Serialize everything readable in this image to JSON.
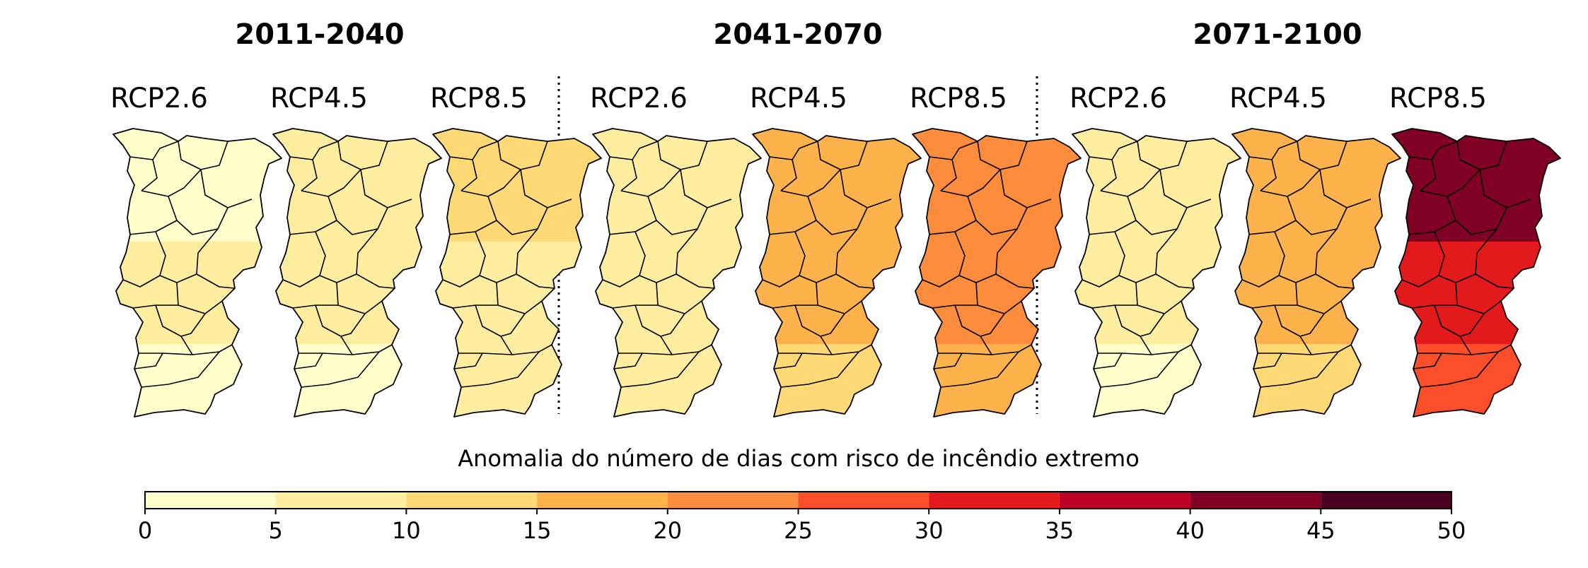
{
  "figure": {
    "periods": [
      {
        "label": "2011-2040",
        "scenarios": [
          {
            "label": "RCP2.6",
            "north": 4,
            "centre": 5,
            "south": 3
          },
          {
            "label": "RCP4.5",
            "north": 6,
            "centre": 6,
            "south": 3
          },
          {
            "label": "RCP8.5",
            "north": 11,
            "centre": 9,
            "south": 8
          }
        ]
      },
      {
        "label": "2041-2070",
        "scenarios": [
          {
            "label": "RCP2.6",
            "north": 8,
            "centre": 6,
            "south": 6
          },
          {
            "label": "RCP4.5",
            "north": 17,
            "centre": 15,
            "south": 13
          },
          {
            "label": "RCP8.5",
            "north": 24,
            "centre": 20,
            "south": 18
          }
        ]
      },
      {
        "label": "2071-2100",
        "scenarios": [
          {
            "label": "RCP2.6",
            "north": 6,
            "centre": 6,
            "south": 3
          },
          {
            "label": "RCP4.5",
            "north": 18,
            "centre": 15,
            "south": 12
          },
          {
            "label": "RCP8.5",
            "north": 40,
            "centre": 31,
            "south": 27
          }
        ]
      }
    ],
    "colorbar": {
      "label": "Anomalia do número de dias com risco de incêndio extremo",
      "ticks": [
        "0",
        "5",
        "10",
        "15",
        "20",
        "25",
        "30",
        "35",
        "40",
        "45",
        "50"
      ],
      "bins": [
        {
          "from": 0,
          "to": 5,
          "color": "#ffffcc"
        },
        {
          "from": 5,
          "to": 10,
          "color": "#ffeda0"
        },
        {
          "from": 10,
          "to": 15,
          "color": "#fed976"
        },
        {
          "from": 15,
          "to": 20,
          "color": "#feb24c"
        },
        {
          "from": 20,
          "to": 25,
          "color": "#fd8d3c"
        },
        {
          "from": 25,
          "to": 30,
          "color": "#fc4e2a"
        },
        {
          "from": 30,
          "to": 35,
          "color": "#e31a1c"
        },
        {
          "from": 35,
          "to": 40,
          "color": "#bd0026"
        },
        {
          "from": 40,
          "to": 45,
          "color": "#800026"
        },
        {
          "from": 45,
          "to": 50,
          "color": "#4a0020"
        }
      ]
    }
  }
}
